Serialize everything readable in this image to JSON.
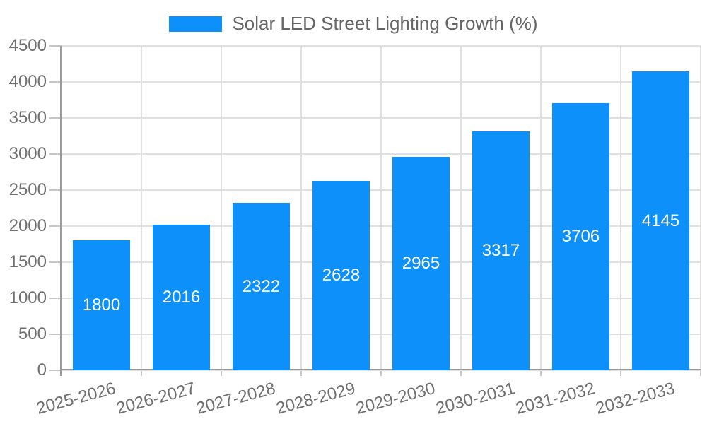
{
  "legend": {
    "label": "Solar LED Street Lighting Growth (%)"
  },
  "chart_data": {
    "type": "bar",
    "title": "Solar LED Street Lighting Growth (%)",
    "categories": [
      "2025-2026",
      "2026-2027",
      "2027-2028",
      "2028-2029",
      "2029-2030",
      "2030-2031",
      "2031-2032",
      "2032-2033"
    ],
    "series": [
      {
        "name": "Solar LED Street Lighting Growth (%)",
        "values": [
          1800,
          2016,
          2322,
          2628,
          2965,
          3317,
          3706,
          4145
        ]
      }
    ],
    "bar_value_labels": [
      "1800",
      "2016",
      "2322",
      "2628",
      "2965",
      "3317",
      "3706",
      "4145"
    ],
    "xlabel": "",
    "ylabel": "",
    "ylim": [
      0,
      4500
    ],
    "ytick_step": 500,
    "yticks": [
      0,
      500,
      1000,
      1500,
      2000,
      2500,
      3000,
      3500,
      4000,
      4500
    ],
    "grid": "both",
    "legend_position": "top-center",
    "value_label_position": "inside-center",
    "x_label_rotation_deg": -15
  },
  "colors": {
    "bar": "#0E90FA",
    "grid": "#E0E0E0",
    "axis": "#9A9A9A",
    "tick": "#C6C6C6",
    "axis_label": "#707070",
    "legend_text": "#666666",
    "value_label": "#FFFFFF",
    "background": "#FFFFFF"
  }
}
